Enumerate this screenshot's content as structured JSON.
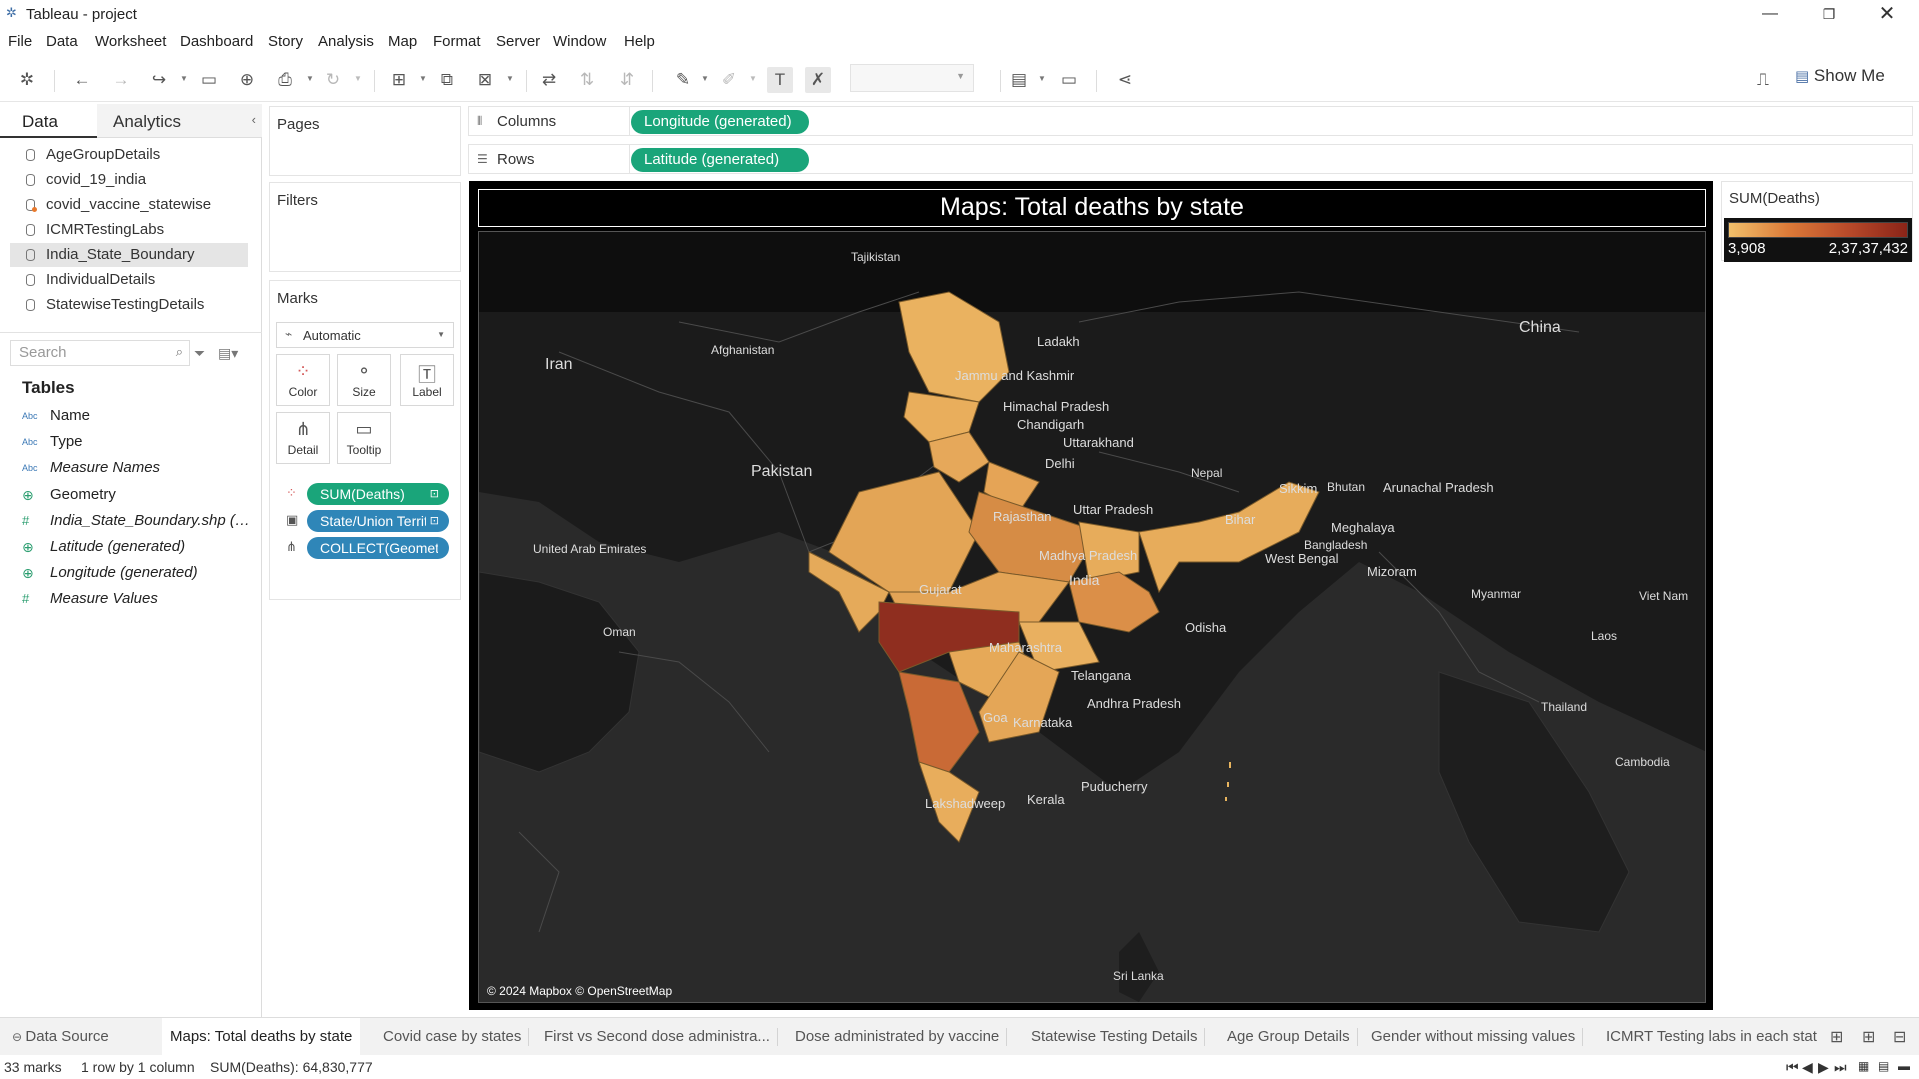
{
  "window": {
    "title": "Tableau - project",
    "controls": [
      "minimize-icon",
      "restore-icon",
      "close-icon"
    ]
  },
  "menu": [
    "File",
    "Data",
    "Worksheet",
    "Dashboard",
    "Story",
    "Analysis",
    "Map",
    "Format",
    "Server",
    "Window",
    "Help"
  ],
  "toolbar": {
    "show_me": "Show Me",
    "fit_value": ""
  },
  "data_pane": {
    "tabs": [
      "Data",
      "Analytics"
    ],
    "data_sources": [
      {
        "label": "AgeGroupDetails",
        "selected": false
      },
      {
        "label": "covid_19_india",
        "selected": false
      },
      {
        "label": "covid_vaccine_statewise",
        "selected": false
      },
      {
        "label": "ICMRTestingLabs",
        "selected": false
      },
      {
        "label": "India_State_Boundary",
        "selected": true
      },
      {
        "label": "IndividualDetails",
        "selected": false
      },
      {
        "label": "StatewiseTestingDetails",
        "selected": false
      }
    ],
    "search_placeholder": "Search",
    "tables_heading": "Tables",
    "fields": [
      {
        "type": "Abc",
        "label": "Name",
        "italic": false
      },
      {
        "type": "Abc",
        "label": "Type",
        "italic": false
      },
      {
        "type": "Abc",
        "label": "Measure Names",
        "italic": true
      },
      {
        "type": "globe",
        "label": "Geometry",
        "italic": false
      },
      {
        "type": "#",
        "label": "India_State_Boundary.shp (Count)",
        "italic": true
      },
      {
        "type": "globe",
        "label": "Latitude (generated)",
        "italic": true
      },
      {
        "type": "globe",
        "label": "Longitude (generated)",
        "italic": true
      },
      {
        "type": "#",
        "label": "Measure Values",
        "italic": true
      }
    ]
  },
  "cards": {
    "pages": "Pages",
    "filters": "Filters",
    "marks": "Marks",
    "mark_type": "Automatic",
    "mark_buttons": [
      "Color",
      "Size",
      "Label",
      "Detail",
      "Tooltip"
    ],
    "mark_pills": [
      {
        "label": "SUM(Deaths)",
        "color": "#1aa57a"
      },
      {
        "label": "State/Union Territory",
        "color": "#2f86b8"
      },
      {
        "label": "COLLECT(Geometry)",
        "color": "#2f86b8"
      }
    ]
  },
  "shelves": {
    "columns_label": "Columns",
    "columns_pill": "Longitude (generated)",
    "rows_label": "Rows",
    "rows_pill": "Latitude (generated)"
  },
  "viz": {
    "title": "Maps: Total deaths by state",
    "attribution": "© 2024 Mapbox © OpenStreetMap",
    "country_labels": [
      "Tajikistan",
      "Afghanistan",
      "Iran",
      "Pakistan",
      "China",
      "Nepal",
      "Bhutan",
      "Bangladesh",
      "Myanmar",
      "Viet Nam",
      "Laos",
      "Thailand",
      "Cambodia",
      "Sri Lanka",
      "United Arab Emirates",
      "Oman",
      "India"
    ],
    "state_labels": [
      "Ladakh",
      "Jammu and Kashmir",
      "Himachal Pradesh",
      "Chandigarh",
      "Uttarakhand",
      "Delhi",
      "Rajasthan",
      "Uttar Pradesh",
      "Bihar",
      "Sikkim",
      "Arunachal Pradesh",
      "Meghalaya",
      "West Bengal",
      "Mizoram",
      "Madhya Pradesh",
      "Gujarat",
      "Odisha",
      "Maharashtra",
      "Telangana",
      "Andhra Pradesh",
      "Goa",
      "Karnataka",
      "Puducherry",
      "Kerala",
      "Lakshadweep"
    ]
  },
  "legend": {
    "title": "SUM(Deaths)",
    "min": "3,908",
    "max": "2,37,37,432",
    "colors": [
      "#f1c06b",
      "#dc7a38",
      "#b94a2a",
      "#8a2418"
    ]
  },
  "sheet_tabs": {
    "data_source": "Data Source",
    "sheets": [
      {
        "label": "Maps: Total deaths by state",
        "active": true
      },
      {
        "label": "Covid case by states",
        "active": false
      },
      {
        "label": "First vs Second dose administra...",
        "active": false
      },
      {
        "label": "Dose administrated by vaccine",
        "active": false
      },
      {
        "label": "Statewise Testing Details",
        "active": false
      },
      {
        "label": "Age Group Details",
        "active": false
      },
      {
        "label": "Gender without missing values",
        "active": false
      },
      {
        "label": "ICMRT Testing labs in each stat",
        "active": false
      }
    ]
  },
  "status": {
    "marks": "33 marks",
    "dims": "1 row by 1 column",
    "sum": "SUM(Deaths): 64,830,777"
  }
}
